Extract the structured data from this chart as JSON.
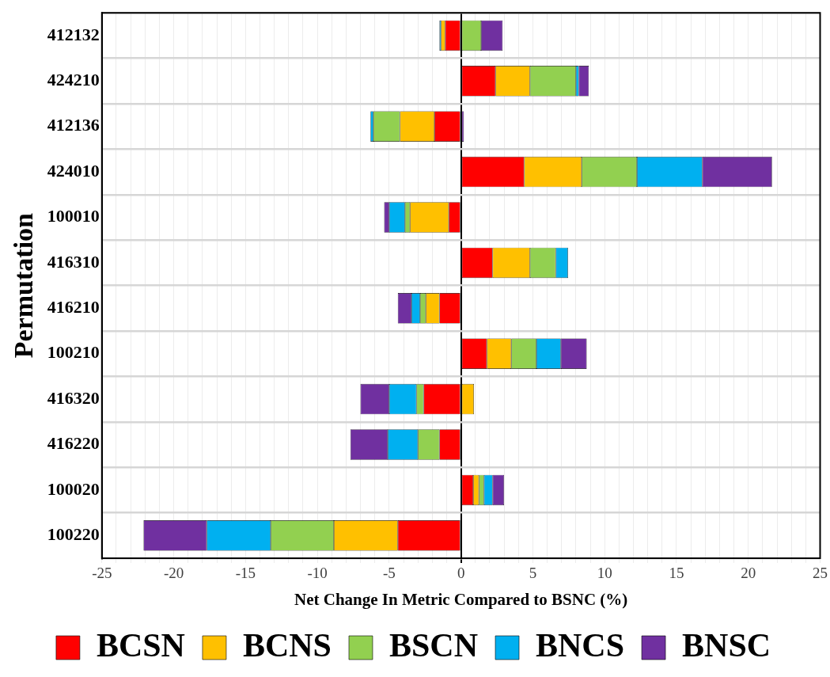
{
  "chart_data": {
    "type": "bar",
    "orientation": "horizontal",
    "stacked": true,
    "xlabel": "Net Change In Metric Compared to BSNC (%)",
    "ylabel": "Permutation",
    "categories": [
      "412132",
      "424210",
      "412136",
      "424010",
      "100010",
      "416310",
      "416210",
      "100210",
      "416320",
      "416220",
      "100020",
      "100220"
    ],
    "series": [
      {
        "name": "BCSN",
        "color": "#ff0000",
        "values": [
          -1.1,
          2.4,
          -1.85,
          4.4,
          -0.85,
          2.2,
          -1.5,
          1.8,
          -2.6,
          -1.5,
          0.85,
          -4.4
        ]
      },
      {
        "name": "BCNS",
        "color": "#ffc000",
        "values": [
          -0.3,
          2.4,
          -2.4,
          4.0,
          -2.7,
          2.6,
          -0.95,
          1.7,
          0.9,
          null,
          0.4,
          -4.45
        ]
      },
      {
        "name": "BSCN",
        "color": "#92d050",
        "values": [
          1.4,
          3.2,
          -1.85,
          3.85,
          -0.35,
          1.8,
          -0.4,
          1.75,
          -0.5,
          -1.5,
          0.35,
          -4.4
        ]
      },
      {
        "name": "BNCS",
        "color": "#00b0f0",
        "values": [
          -0.1,
          0.2,
          -0.2,
          4.55,
          -1.1,
          0.85,
          -0.6,
          1.7,
          -1.9,
          -2.1,
          0.6,
          -4.45
        ]
      },
      {
        "name": "BNSC",
        "color": "#7030a0",
        "values": [
          1.5,
          0.7,
          0.2,
          4.85,
          -0.35,
          null,
          -0.95,
          1.8,
          -2.0,
          -2.6,
          0.8,
          -4.4
        ]
      }
    ],
    "xlim": [
      -25,
      25
    ],
    "xticks": [
      -25,
      {
        "value": -24,
        "label": null
      },
      {
        "value": -23,
        "label": null
      },
      {
        "value": -22,
        "label": null
      },
      {
        "value": -21,
        "label": null
      },
      -20,
      {
        "value": -19,
        "label": null
      },
      {
        "value": -18,
        "label": null
      },
      {
        "value": -17,
        "label": null
      },
      {
        "value": -16,
        "label": null
      },
      -15,
      {
        "value": -14,
        "label": null
      },
      {
        "value": -13,
        "label": null
      },
      {
        "value": -12,
        "label": null
      },
      {
        "value": -11,
        "label": null
      },
      -10,
      {
        "value": -9,
        "label": null
      },
      {
        "value": -8,
        "label": null
      },
      {
        "value": -7,
        "label": null
      },
      {
        "value": -6,
        "label": null
      },
      -5,
      {
        "value": -4,
        "label": null
      },
      {
        "value": -3,
        "label": null
      },
      {
        "value": -2,
        "label": null
      },
      {
        "value": -1,
        "label": null
      },
      0,
      {
        "value": 1,
        "label": null
      },
      {
        "value": 2,
        "label": null
      },
      {
        "value": 3,
        "label": null
      },
      {
        "value": 4,
        "label": null
      },
      5,
      {
        "value": 6,
        "label": null
      },
      {
        "value": 7,
        "label": null
      },
      {
        "value": 8,
        "label": null
      },
      {
        "value": 9,
        "label": null
      },
      10,
      {
        "value": 11,
        "label": null
      },
      {
        "value": 12,
        "label": null
      },
      {
        "value": 13,
        "label": null
      },
      {
        "value": 14,
        "label": null
      },
      15,
      {
        "value": 16,
        "label": null
      },
      {
        "value": 17,
        "label": null
      },
      {
        "value": 18,
        "label": null
      },
      {
        "value": 19,
        "label": null
      },
      20,
      {
        "value": 21,
        "label": null
      },
      {
        "value": 22,
        "label": null
      },
      {
        "value": 23,
        "label": null
      },
      {
        "value": 24,
        "label": null
      },
      25
    ],
    "grid": true,
    "legend": "bottom"
  }
}
